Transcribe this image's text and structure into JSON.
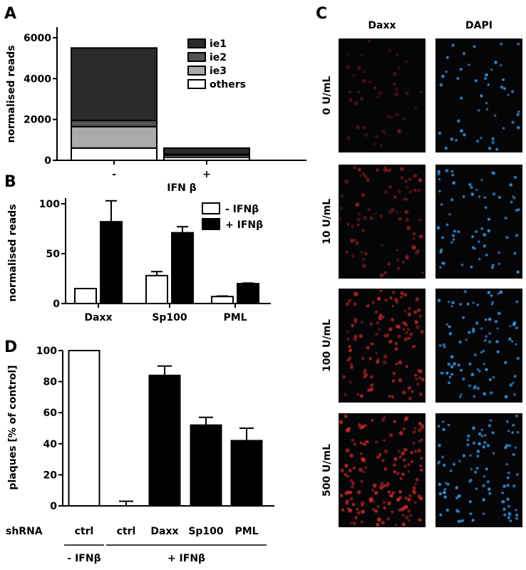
{
  "panels": {
    "A": "A",
    "B": "B",
    "C": "C",
    "D": "D"
  },
  "chart_data": [
    {
      "id": "A",
      "type": "bar",
      "stacked": true,
      "categories": [
        "-",
        "+"
      ],
      "xlabel": "IFN β",
      "ylabel": "normalised reads",
      "ylim": [
        0,
        6000
      ],
      "yticks": [
        0,
        2000,
        4000,
        6000
      ],
      "legend_position": "top-right",
      "series": [
        {
          "name": "others",
          "values": [
            600,
            150
          ],
          "color": "#ffffff"
        },
        {
          "name": "ie3",
          "values": [
            1050,
            100
          ],
          "color": "#aaaaaa"
        },
        {
          "name": "ie2",
          "values": [
            300,
            50
          ],
          "color": "#555555"
        },
        {
          "name": "ie1",
          "values": [
            3550,
            300
          ],
          "color": "#2b2b2b"
        }
      ]
    },
    {
      "id": "B",
      "type": "bar",
      "categories": [
        "Daxx",
        "Sp100",
        "PML"
      ],
      "ylabel": "normalised reads",
      "ylim": [
        0,
        110
      ],
      "yticks": [
        0,
        50,
        100
      ],
      "legend_position": "top-right",
      "series": [
        {
          "name": "- IFNβ",
          "values": [
            15,
            28,
            7
          ],
          "errors": [
            0,
            4,
            0.5
          ],
          "color": "#ffffff"
        },
        {
          "name": "+ IFNβ",
          "values": [
            82,
            71,
            20
          ],
          "errors": [
            21,
            6,
            0.5
          ],
          "color": "#000000"
        }
      ]
    },
    {
      "id": "D",
      "type": "bar",
      "categories": [
        "ctrl",
        "ctrl",
        "Daxx",
        "Sp100",
        "PML"
      ],
      "values": [
        100,
        0,
        84,
        52,
        42
      ],
      "errors": [
        0,
        3,
        6,
        5,
        8
      ],
      "colors": [
        "#ffffff",
        "#ffffff",
        "#000000",
        "#000000",
        "#000000"
      ],
      "ylabel": "plaques [% of control]",
      "ylim": [
        0,
        100
      ],
      "yticks": [
        0,
        20,
        40,
        60,
        80,
        100
      ],
      "row_label": "shRNA",
      "groups": [
        {
          "label": "- IFNβ",
          "from": 0,
          "to": 0
        },
        {
          "label": "+ IFNβ",
          "from": 1,
          "to": 4
        }
      ]
    }
  ],
  "micrographs": {
    "columns": [
      "Daxx",
      "DAPI"
    ],
    "rows": [
      "0 U/mL",
      "10 U/mL",
      "100 U/mL",
      "500 U/mL"
    ],
    "column_colors": [
      "#e23030",
      "#3aa0f0"
    ],
    "relative_intensity": [
      0.15,
      0.45,
      0.8,
      1.0
    ]
  }
}
